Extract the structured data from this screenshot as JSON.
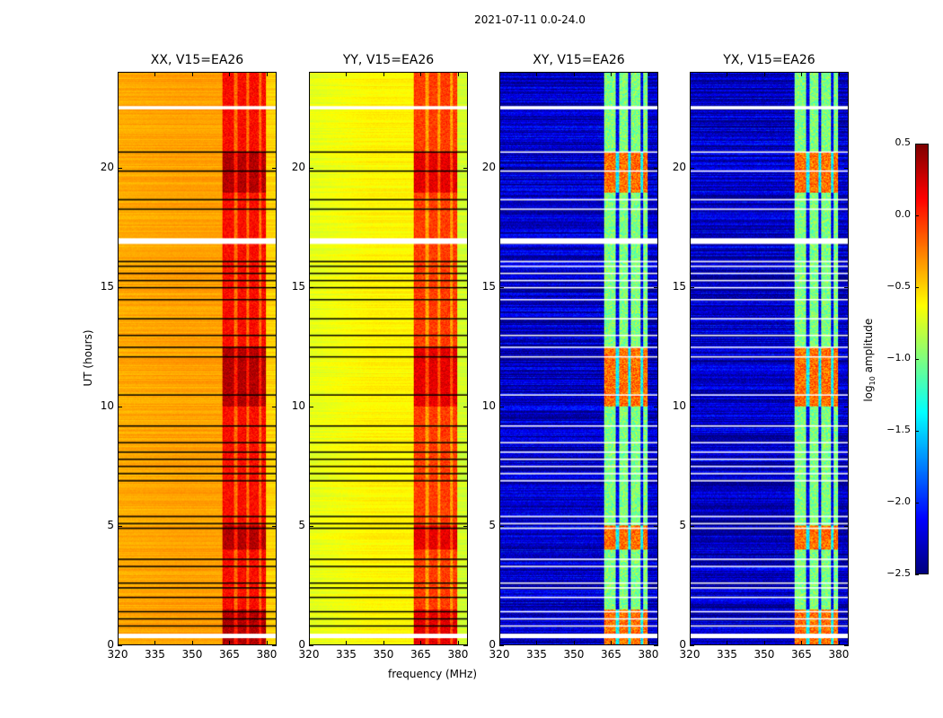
{
  "figure_title": "2021-07-11 0.0-24.0",
  "chart_data": {
    "type": "heatmap",
    "title": "2021-07-11 0.0-24.0",
    "xlabel": "frequency (MHz)",
    "ylabel": "UT (hours)",
    "xlim": [
      320,
      384
    ],
    "ylim": [
      0,
      24
    ],
    "xticks": [
      "320",
      "335",
      "350",
      "365",
      "380"
    ],
    "yticks": [
      "0",
      "5",
      "10",
      "15",
      "20"
    ],
    "panels": [
      {
        "title": "XX, V15=EA26",
        "baseline_log_amp": -0.35,
        "rfi_band_log_amp": 0.1,
        "flag_color": "#000000"
      },
      {
        "title": "YY, V15=EA26",
        "baseline_log_amp": -0.6,
        "rfi_band_log_amp": -0.05,
        "flag_color": "#000000"
      },
      {
        "title": "XY, V15=EA26",
        "baseline_log_amp": -2.3,
        "rfi_band_log_amp": -1.0,
        "flag_color": "#ffffff"
      },
      {
        "title": "YX, V15=EA26",
        "baseline_log_amp": -2.3,
        "rfi_band_log_amp": -1.0,
        "flag_color": "#ffffff"
      }
    ],
    "rfi_band_mhz": [
      362,
      381
    ],
    "flagged_times_hours": [
      20.7,
      19.9,
      18.7,
      18.3,
      17.0,
      16.1,
      15.9,
      15.6,
      15.3,
      15.0,
      14.5,
      13.7,
      13.0,
      12.5,
      12.1,
      10.5,
      9.2,
      8.5,
      8.1,
      7.8,
      7.5,
      7.2,
      6.9,
      5.4,
      5.1,
      4.9,
      3.6,
      3.3,
      2.6,
      2.4,
      2.0,
      1.4,
      1.1,
      0.8,
      0.4
    ],
    "colorbar": {
      "label": "log10 amplitude",
      "colormap": "jet",
      "range": [
        -2.5,
        0.5
      ],
      "ticks": [
        "0.5",
        "0.0",
        "−0.5",
        "−1.0",
        "−1.5",
        "−2.0",
        "−2.5"
      ]
    }
  }
}
